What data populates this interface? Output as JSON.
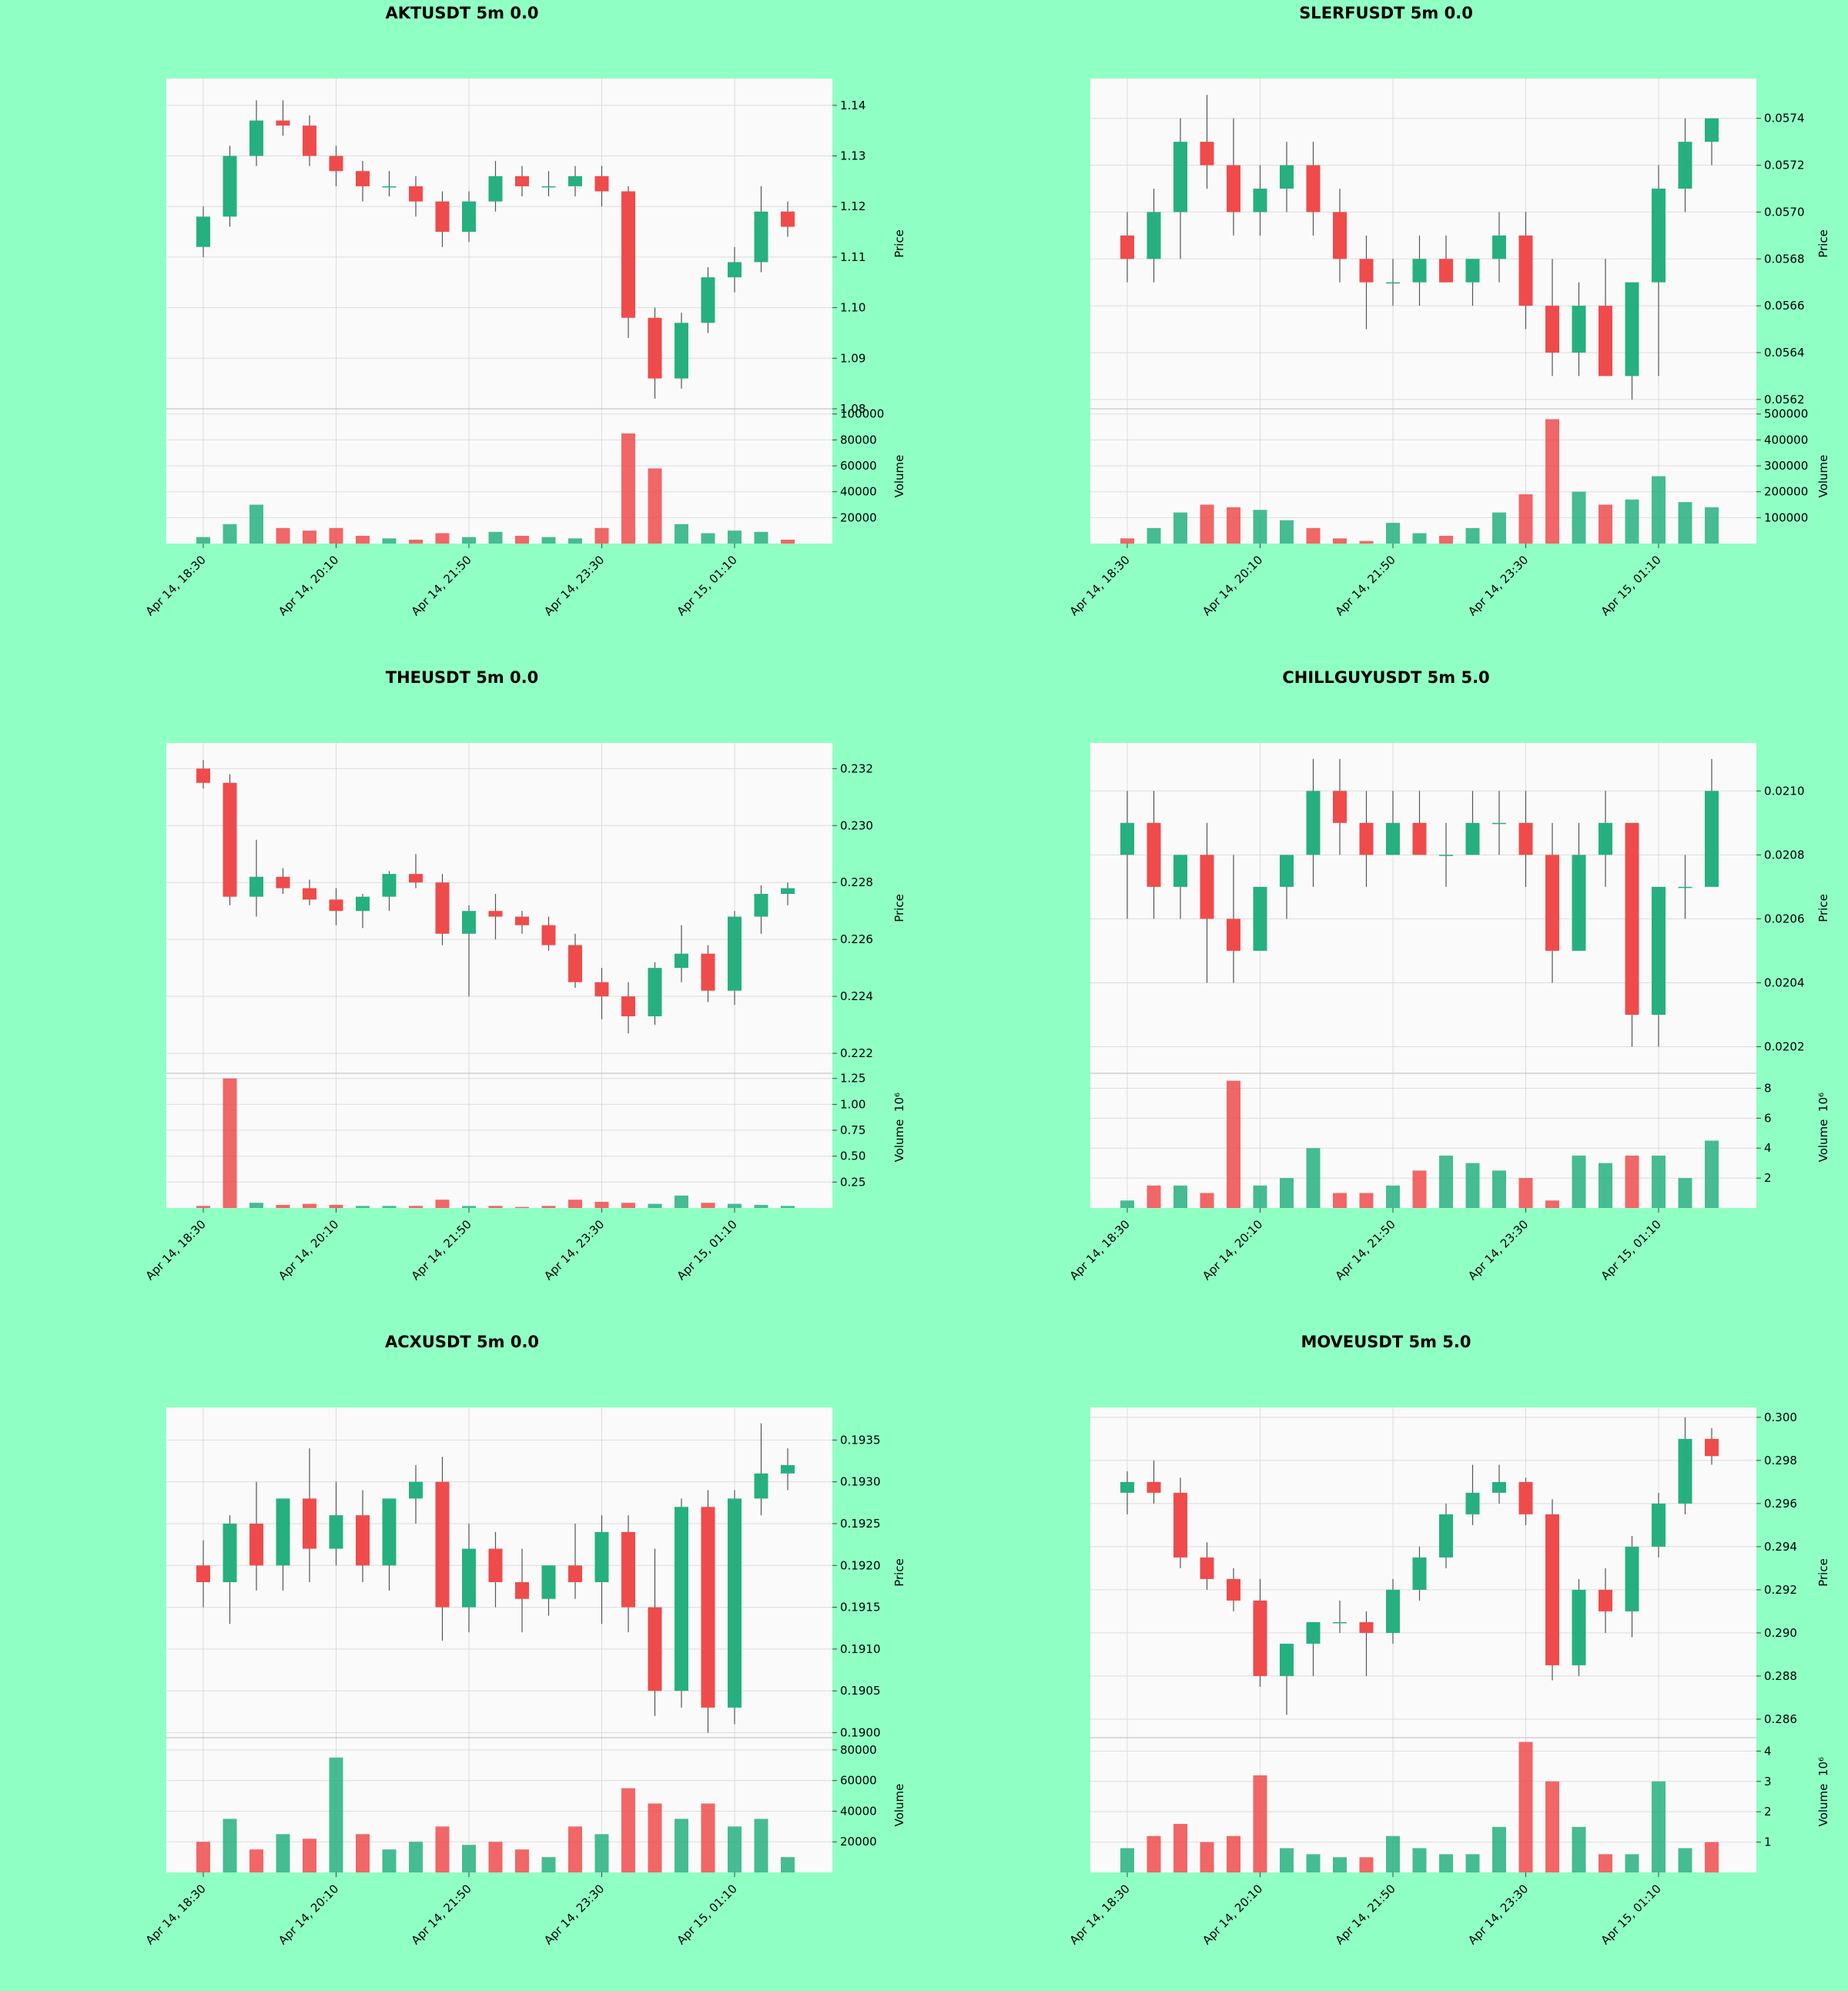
{
  "chart_data": [
    {
      "type": "candlestick",
      "title": "AKTUSDT 5m 0.0",
      "y_label": "Price",
      "volume_label": "Volume",
      "categories": [
        "Apr 14, 18:30",
        null,
        null,
        null,
        null,
        "Apr 14, 20:10",
        null,
        null,
        null,
        null,
        "Apr 14, 21:50",
        null,
        null,
        null,
        null,
        "Apr 14, 23:30",
        null,
        null,
        null,
        null,
        "Apr 15, 01:10",
        null,
        null
      ],
      "open": [
        1.112,
        1.118,
        1.13,
        1.137,
        1.136,
        1.13,
        1.127,
        1.124,
        1.124,
        1.121,
        1.115,
        1.121,
        1.126,
        1.124,
        1.124,
        1.126,
        1.123,
        1.098,
        1.086,
        1.097,
        1.106,
        1.109,
        1.119
      ],
      "high": [
        1.12,
        1.132,
        1.141,
        1.141,
        1.138,
        1.132,
        1.129,
        1.127,
        1.126,
        1.123,
        1.123,
        1.129,
        1.128,
        1.127,
        1.128,
        1.128,
        1.124,
        1.1,
        1.099,
        1.108,
        1.112,
        1.124,
        1.121
      ],
      "low": [
        1.11,
        1.116,
        1.128,
        1.134,
        1.128,
        1.124,
        1.121,
        1.122,
        1.118,
        1.112,
        1.113,
        1.119,
        1.122,
        1.122,
        1.122,
        1.12,
        1.094,
        1.082,
        1.084,
        1.095,
        1.103,
        1.107,
        1.114
      ],
      "close": [
        1.118,
        1.13,
        1.137,
        1.136,
        1.13,
        1.127,
        1.124,
        1.124,
        1.121,
        1.115,
        1.121,
        1.126,
        1.124,
        1.124,
        1.126,
        1.123,
        1.098,
        1.086,
        1.097,
        1.106,
        1.109,
        1.119,
        1.116
      ],
      "volume": [
        5000,
        15000,
        30000,
        12000,
        10000,
        12000,
        6000,
        4000,
        3000,
        8000,
        5000,
        9000,
        6000,
        5000,
        4000,
        12000,
        85000,
        58000,
        15000,
        8000,
        10000,
        9000,
        3000
      ],
      "ylim": [
        1.08,
        1.1453
      ],
      "yticks": [
        1.08,
        1.09,
        {
          "value": 1.1,
          "label": "1.10"
        },
        1.11,
        1.12,
        1.13,
        1.14
      ],
      "volume_ylim": [
        0,
        104000
      ],
      "volume_yticks": [
        20000,
        40000,
        60000,
        80000,
        100000
      ],
      "up_color": "#26b07f",
      "down_color": "#ef4b4b",
      "grid": true
    },
    {
      "type": "candlestick",
      "title": "SLERFUSDT 5m 0.0",
      "y_label": "Price",
      "volume_label": "Volume",
      "categories": [
        "Apr 14, 18:30",
        null,
        null,
        null,
        null,
        "Apr 14, 20:10",
        null,
        null,
        null,
        null,
        "Apr 14, 21:50",
        null,
        null,
        null,
        null,
        "Apr 14, 23:30",
        null,
        null,
        null,
        null,
        "Apr 15, 01:10",
        null,
        null
      ],
      "open": [
        0.0569,
        0.0568,
        0.057,
        0.0573,
        0.0572,
        0.057,
        0.0571,
        0.0572,
        0.057,
        0.0568,
        0.0567,
        0.0567,
        0.0568,
        0.0567,
        0.0568,
        0.0569,
        0.0566,
        0.0564,
        0.0566,
        0.0563,
        0.0567,
        0.0571,
        0.0573
      ],
      "high": [
        0.057,
        0.0571,
        0.0574,
        0.0575,
        0.0574,
        0.0572,
        0.0573,
        0.0573,
        0.0571,
        0.0569,
        0.0568,
        0.0569,
        0.0569,
        0.0568,
        0.057,
        0.057,
        0.0568,
        0.0567,
        0.0568,
        0.0567,
        0.0572,
        0.0574,
        0.0574
      ],
      "low": [
        0.0567,
        0.0567,
        0.0568,
        0.0571,
        0.0569,
        0.0569,
        0.057,
        0.0569,
        0.0567,
        0.0565,
        0.0566,
        0.0566,
        0.0567,
        0.0566,
        0.0567,
        0.0565,
        0.0563,
        0.0563,
        0.0563,
        0.0562,
        0.0563,
        0.057,
        0.0572
      ],
      "close": [
        0.0568,
        0.057,
        0.0573,
        0.0572,
        0.057,
        0.0571,
        0.0572,
        0.057,
        0.0568,
        0.0567,
        0.0567,
        0.0568,
        0.0567,
        0.0568,
        0.0569,
        0.0566,
        0.0564,
        0.0566,
        0.0563,
        0.0567,
        0.0571,
        0.0573,
        0.0574
      ],
      "volume": [
        20000,
        60000,
        120000,
        150000,
        140000,
        130000,
        90000,
        60000,
        20000,
        10000,
        80000,
        40000,
        30000,
        60000,
        120000,
        190000,
        480000,
        200000,
        150000,
        170000,
        260000,
        160000,
        140000
      ],
      "ylim": [
        0.05616,
        0.05757
      ],
      "yticks": [
        0.0562,
        0.0564,
        0.0566,
        0.0568,
        {
          "value": 0.057,
          "label": "0.0570"
        },
        0.0572,
        0.0574
      ],
      "volume_ylim": [
        0,
        520000
      ],
      "volume_yticks": [
        100000,
        200000,
        300000,
        400000,
        500000
      ],
      "up_color": "#26b07f",
      "down_color": "#ef4b4b",
      "grid": true
    },
    {
      "type": "candlestick",
      "title": "THEUSDT 5m 0.0",
      "y_label": "Price",
      "volume_label": "Volume",
      "volume_scale": "10⁶",
      "categories": [
        "Apr 14, 18:30",
        null,
        null,
        null,
        null,
        "Apr 14, 20:10",
        null,
        null,
        null,
        null,
        "Apr 14, 21:50",
        null,
        null,
        null,
        null,
        "Apr 14, 23:30",
        null,
        null,
        null,
        null,
        "Apr 15, 01:10",
        null,
        null
      ],
      "open": [
        0.232,
        0.2315,
        0.2275,
        0.2282,
        0.2278,
        0.2274,
        0.227,
        0.2275,
        0.2283,
        0.228,
        0.2262,
        0.227,
        0.2268,
        0.2265,
        0.2258,
        0.2245,
        0.224,
        0.2233,
        0.225,
        0.2255,
        0.2242,
        0.2268,
        0.2276
      ],
      "high": [
        0.2323,
        0.2318,
        0.2295,
        0.2285,
        0.2281,
        0.2278,
        0.2276,
        0.2284,
        0.229,
        0.2283,
        0.2272,
        0.2276,
        0.227,
        0.2268,
        0.2262,
        0.225,
        0.2245,
        0.2252,
        0.2265,
        0.2258,
        0.227,
        0.2279,
        0.228
      ],
      "low": [
        0.2313,
        0.2272,
        0.2268,
        0.2276,
        0.2272,
        0.2265,
        0.2264,
        0.227,
        0.2278,
        0.2258,
        0.224,
        0.226,
        0.2262,
        0.2256,
        0.2243,
        0.2232,
        0.2227,
        0.223,
        0.2245,
        0.2238,
        0.2237,
        0.2262,
        0.2272
      ],
      "close": [
        0.2315,
        0.2275,
        0.2282,
        0.2278,
        0.2274,
        0.227,
        0.2275,
        0.2283,
        0.228,
        0.2262,
        0.227,
        0.2268,
        0.2265,
        0.2258,
        0.2245,
        0.224,
        0.2233,
        0.225,
        0.2255,
        0.2242,
        0.2268,
        0.2276,
        0.2278
      ],
      "volume": [
        0.02,
        1.25,
        0.05,
        0.03,
        0.04,
        0.03,
        0.02,
        0.02,
        0.02,
        0.08,
        0.02,
        0.02,
        0.01,
        0.02,
        0.08,
        0.06,
        0.05,
        0.04,
        0.12,
        0.05,
        0.04,
        0.03,
        0.02
      ],
      "ylim": [
        0.2213,
        0.2329
      ],
      "yticks": [
        0.222,
        0.224,
        0.226,
        0.228,
        {
          "value": 0.23,
          "label": "0.230"
        },
        0.232
      ],
      "volume_ylim": [
        0,
        1.3
      ],
      "volume_yticks": [
        0.25,
        {
          "value": 0.5,
          "label": "0.50"
        },
        0.75,
        {
          "value": 1,
          "label": "1.00"
        },
        1.25
      ],
      "up_color": "#26b07f",
      "down_color": "#ef4b4b",
      "grid": true
    },
    {
      "type": "candlestick",
      "title": "CHILLGUYUSDT 5m 5.0",
      "y_label": "Price",
      "volume_label": "Volume",
      "volume_scale": "10⁶",
      "categories": [
        "Apr 14, 18:30",
        null,
        null,
        null,
        null,
        "Apr 14, 20:10",
        null,
        null,
        null,
        null,
        "Apr 14, 21:50",
        null,
        null,
        null,
        null,
        "Apr 14, 23:30",
        null,
        null,
        null,
        null,
        "Apr 15, 01:10",
        null,
        null
      ],
      "open": [
        0.0208,
        0.0209,
        0.0207,
        0.0208,
        0.0206,
        0.0205,
        0.0207,
        0.0208,
        0.021,
        0.0209,
        0.0208,
        0.0209,
        0.0208,
        0.0208,
        0.0209,
        0.0209,
        0.0208,
        0.0205,
        0.0208,
        0.0209,
        0.0203,
        0.0207,
        0.0207
      ],
      "high": [
        0.021,
        0.021,
        0.0208,
        0.0209,
        0.0208,
        0.0207,
        0.0208,
        0.0211,
        0.0211,
        0.021,
        0.021,
        0.021,
        0.0209,
        0.021,
        0.021,
        0.021,
        0.0209,
        0.0209,
        0.021,
        0.0209,
        0.0207,
        0.0208,
        0.0211
      ],
      "low": [
        0.0206,
        0.0206,
        0.0206,
        0.0204,
        0.0204,
        0.0205,
        0.0206,
        0.0207,
        0.0208,
        0.0207,
        0.0208,
        0.0208,
        0.0207,
        0.0208,
        0.0208,
        0.0207,
        0.0204,
        0.0205,
        0.0207,
        0.0202,
        0.0202,
        0.0206,
        0.0207
      ],
      "close": [
        0.0209,
        0.0207,
        0.0208,
        0.0206,
        0.0205,
        0.0207,
        0.0208,
        0.021,
        0.0209,
        0.0208,
        0.0209,
        0.0208,
        0.0208,
        0.0209,
        0.0209,
        0.0208,
        0.0205,
        0.0208,
        0.0209,
        0.0203,
        0.0207,
        0.0207,
        0.021
      ],
      "volume": [
        0.5,
        1.5,
        1.5,
        1.0,
        8.5,
        1.5,
        2.0,
        4.0,
        1.0,
        1.0,
        1.5,
        2.5,
        3.5,
        3.0,
        2.5,
        2.0,
        0.5,
        3.5,
        3.0,
        3.5,
        3.5,
        2.0,
        4.5
      ],
      "ylim": [
        0.020117,
        0.02115
      ],
      "yticks": [
        0.0202,
        0.0204,
        0.0206,
        0.0208,
        {
          "value": 0.021,
          "label": "0.0210"
        }
      ],
      "volume_ylim": [
        0,
        9
      ],
      "volume_yticks": [
        2,
        4,
        6,
        8
      ],
      "up_color": "#26b07f",
      "down_color": "#ef4b4b",
      "grid": true
    },
    {
      "type": "candlestick",
      "title": "ACXUSDT 5m 0.0",
      "y_label": "Price",
      "volume_label": "Volume",
      "categories": [
        "Apr 14, 18:30",
        null,
        null,
        null,
        null,
        "Apr 14, 20:10",
        null,
        null,
        null,
        null,
        "Apr 14, 21:50",
        null,
        null,
        null,
        null,
        "Apr 14, 23:30",
        null,
        null,
        null,
        null,
        "Apr 15, 01:10",
        null,
        null
      ],
      "open": [
        0.192,
        0.1918,
        0.1925,
        0.192,
        0.1928,
        0.1922,
        0.1926,
        0.192,
        0.1928,
        0.193,
        0.1915,
        0.1922,
        0.1918,
        0.1916,
        0.192,
        0.1918,
        0.1924,
        0.1915,
        0.1905,
        0.1927,
        0.1903,
        0.1928,
        0.1931
      ],
      "high": [
        0.1923,
        0.1926,
        0.193,
        0.1928,
        0.1934,
        0.193,
        0.1929,
        0.1928,
        0.1932,
        0.1933,
        0.1925,
        0.1924,
        0.1922,
        0.192,
        0.1925,
        0.1926,
        0.1926,
        0.1922,
        0.1928,
        0.1929,
        0.1929,
        0.1937,
        0.1934
      ],
      "low": [
        0.1915,
        0.1913,
        0.1917,
        0.1917,
        0.1918,
        0.192,
        0.1918,
        0.1917,
        0.1925,
        0.1911,
        0.1912,
        0.1915,
        0.1912,
        0.1914,
        0.1916,
        0.1913,
        0.1912,
        0.1902,
        0.1903,
        0.19,
        0.1901,
        0.1926,
        0.1929
      ],
      "close": [
        0.1918,
        0.1925,
        0.192,
        0.1928,
        0.1922,
        0.1926,
        0.192,
        0.1928,
        0.193,
        0.1915,
        0.1922,
        0.1918,
        0.1916,
        0.192,
        0.1918,
        0.1924,
        0.1915,
        0.1905,
        0.1927,
        0.1903,
        0.1928,
        0.1931,
        0.1932
      ],
      "volume": [
        20000,
        35000,
        15000,
        25000,
        22000,
        75000,
        25000,
        15000,
        20000,
        30000,
        18000,
        20000,
        15000,
        10000,
        30000,
        25000,
        55000,
        45000,
        35000,
        45000,
        30000,
        35000,
        10000
      ],
      "ylim": [
        0.18994,
        0.19389
      ],
      "yticks": [
        {
          "value": 0.19,
          "label": "0.1900"
        },
        0.1905,
        {
          "value": 0.191,
          "label": "0.1910"
        },
        0.1915,
        {
          "value": 0.192,
          "label": "0.1920"
        },
        0.1925,
        {
          "value": 0.193,
          "label": "0.1930"
        },
        0.1935
      ],
      "volume_ylim": [
        0,
        88000
      ],
      "volume_yticks": [
        20000,
        40000,
        60000,
        80000
      ],
      "up_color": "#26b07f",
      "down_color": "#ef4b4b",
      "grid": true
    },
    {
      "type": "candlestick",
      "title": "MOVEUSDT 5m 5.0",
      "y_label": "Price",
      "volume_label": "Volume",
      "volume_scale": "10⁶",
      "categories": [
        "Apr 14, 18:30",
        null,
        null,
        null,
        null,
        "Apr 14, 20:10",
        null,
        null,
        null,
        null,
        "Apr 14, 21:50",
        null,
        null,
        null,
        null,
        "Apr 14, 23:30",
        null,
        null,
        null,
        null,
        "Apr 15, 01:10",
        null,
        null
      ],
      "open": [
        0.2965,
        0.297,
        0.2965,
        0.2935,
        0.2925,
        0.2915,
        0.288,
        0.2895,
        0.2905,
        0.2905,
        0.29,
        0.292,
        0.2935,
        0.2955,
        0.2965,
        0.297,
        0.2955,
        0.2885,
        0.292,
        0.291,
        0.294,
        0.296,
        0.299
      ],
      "high": [
        0.2975,
        0.298,
        0.2972,
        0.2942,
        0.293,
        0.2925,
        0.2895,
        0.2905,
        0.2915,
        0.291,
        0.2925,
        0.294,
        0.296,
        0.2978,
        0.2978,
        0.2972,
        0.2962,
        0.2925,
        0.293,
        0.2945,
        0.2965,
        0.3,
        0.2995
      ],
      "low": [
        0.2955,
        0.296,
        0.293,
        0.292,
        0.291,
        0.2875,
        0.2862,
        0.288,
        0.29,
        0.288,
        0.2895,
        0.2915,
        0.293,
        0.295,
        0.296,
        0.295,
        0.2878,
        0.288,
        0.29,
        0.2898,
        0.2935,
        0.2955,
        0.2978
      ],
      "close": [
        0.297,
        0.2965,
        0.2935,
        0.2925,
        0.2915,
        0.288,
        0.2895,
        0.2905,
        0.2905,
        0.29,
        0.292,
        0.2935,
        0.2955,
        0.2965,
        0.297,
        0.2955,
        0.2885,
        0.292,
        0.291,
        0.294,
        0.296,
        0.299,
        0.2982
      ],
      "volume": [
        0.8,
        1.2,
        1.6,
        1.0,
        1.2,
        3.2,
        0.8,
        0.6,
        0.5,
        0.5,
        1.2,
        0.8,
        0.6,
        0.6,
        1.5,
        4.3,
        3.0,
        1.5,
        0.6,
        0.6,
        3.0,
        0.8,
        1.0
      ],
      "ylim": [
        0.28514,
        0.30046
      ],
      "yticks": [
        0.286,
        0.288,
        {
          "value": 0.29,
          "label": "0.290"
        },
        0.292,
        0.294,
        0.296,
        0.298,
        {
          "value": 0.3,
          "label": "0.300"
        }
      ],
      "volume_ylim": [
        0,
        4.44
      ],
      "volume_yticks": [
        1,
        2,
        3,
        4
      ],
      "up_color": "#26b07f",
      "down_color": "#ef4b4b",
      "grid": true
    }
  ]
}
